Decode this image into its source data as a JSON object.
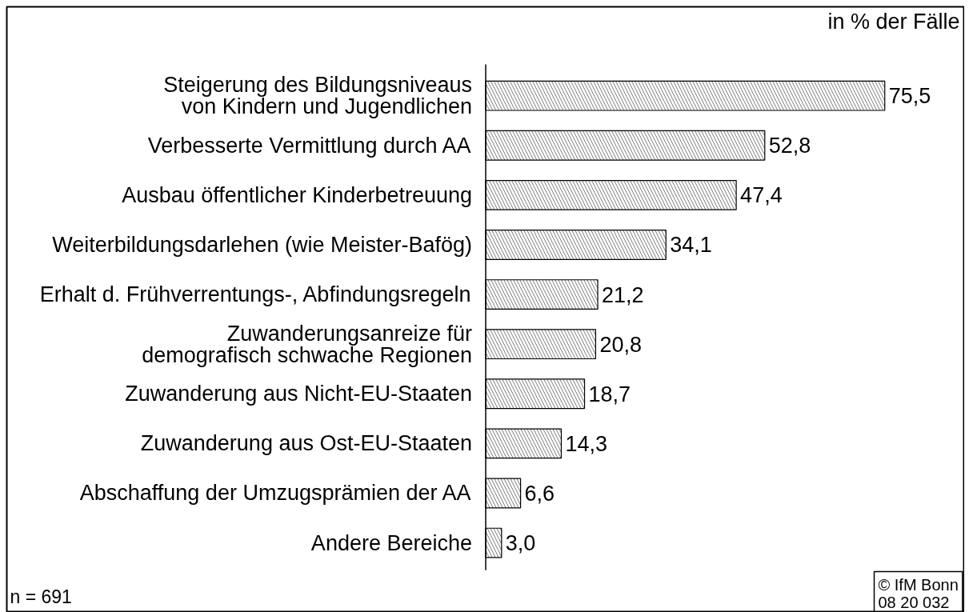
{
  "chart_data": {
    "type": "bar",
    "orientation": "horizontal",
    "xlabel": "in % der Fälle",
    "categories": [
      "Steigerung des Bildungsniveaus\nvon Kindern und Jugendlichen",
      "Verbesserte Vermittlung durch AA",
      "Ausbau öffentlicher Kinderbetreuung",
      "Weiterbildungsdarlehen (wie Meister-Bafög)",
      "Erhalt d. Frühverrentungs-, Abfindungsregeln",
      "Zuwanderungsanreize für\ndemografisch schwache Regionen",
      "Zuwanderung aus Nicht-EU-Staaten",
      "Zuwanderung aus Ost-EU-Staaten",
      "Abschaffung der Umzugsprämien der AA",
      "Andere Bereiche"
    ],
    "values": [
      75.5,
      52.8,
      47.4,
      34.1,
      21.2,
      20.8,
      18.7,
      14.3,
      6.6,
      3.0
    ],
    "value_labels": [
      "75,5",
      "52,8",
      "47,4",
      "34,1",
      "21,2",
      "20,8",
      "18,7",
      "14,3",
      "6,6",
      "3,0"
    ],
    "color": "#000000",
    "tick_labels": "y",
    "annotations": [
      "n = 691",
      "© IfM Bonn\n08 20 032"
    ]
  }
}
